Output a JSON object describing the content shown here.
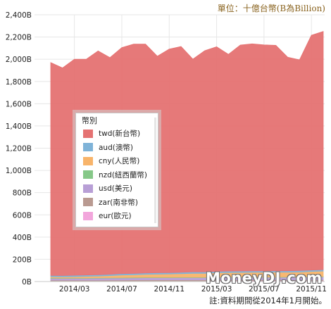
{
  "unit_label": "單位：十億台幣(B為Billion)",
  "footnote": "註:資料期間從2014年1月開始。",
  "watermark": "MoneyDJ.com",
  "colors": {
    "grid": "#e6e6e6",
    "axis_text": "#222222"
  },
  "chart_data": {
    "type": "area",
    "stacked": true,
    "y_ticks": [
      "0B",
      "200B",
      "400B",
      "600B",
      "800B",
      "1,000B",
      "1,200B",
      "1,400B",
      "1,600B",
      "1,800B",
      "2,000B",
      "2,200B",
      "2,400B"
    ],
    "ylim": [
      0,
      2400
    ],
    "x_labels": [
      "2014/03",
      "2014/07",
      "2014/11",
      "2015/03",
      "2015/07",
      "2015/11"
    ],
    "x_label_month_index": [
      2,
      6,
      10,
      14,
      18,
      22
    ],
    "months": [
      "2014/01",
      "2014/02",
      "2014/03",
      "2014/04",
      "2014/05",
      "2014/06",
      "2014/07",
      "2014/08",
      "2014/09",
      "2014/10",
      "2014/11",
      "2014/12",
      "2015/01",
      "2015/02",
      "2015/03",
      "2015/04",
      "2015/05",
      "2015/06",
      "2015/07",
      "2015/08",
      "2015/09",
      "2015/10",
      "2015/11",
      "2015/12"
    ],
    "grid": true,
    "legend_title": "幣別",
    "legend_position": "left-center",
    "series": [
      {
        "name": "eur(歐元)",
        "color": "#f2a6dc",
        "values": [
          5,
          5,
          5,
          5,
          5,
          6,
          6,
          6,
          6,
          6,
          6,
          6,
          6,
          6,
          7,
          7,
          7,
          7,
          7,
          7,
          7,
          7,
          7,
          7
        ]
      },
      {
        "name": "zar(南非幣)",
        "color": "#b99a91",
        "values": [
          8,
          8,
          8,
          8,
          8,
          8,
          8,
          9,
          9,
          9,
          9,
          9,
          9,
          9,
          9,
          9,
          9,
          9,
          9,
          9,
          9,
          9,
          10,
          10
        ]
      },
      {
        "name": "usd(美元)",
        "color": "#b89fd6",
        "values": [
          16,
          15,
          16,
          16,
          17,
          17,
          18,
          18,
          19,
          19,
          19,
          20,
          20,
          20,
          21,
          21,
          22,
          22,
          22,
          22,
          22,
          23,
          24,
          25
        ]
      },
      {
        "name": "nzd(紐西蘭幣)",
        "color": "#86c888",
        "values": [
          4,
          4,
          4,
          4,
          4,
          4,
          4,
          4,
          4,
          4,
          4,
          4,
          4,
          4,
          4,
          4,
          4,
          4,
          4,
          4,
          4,
          4,
          4,
          4
        ]
      },
      {
        "name": "cny(人民幣)",
        "color": "#f8b46a",
        "values": [
          10,
          10,
          11,
          14,
          15,
          18,
          23,
          24,
          27,
          29,
          30,
          32,
          35,
          35,
          38,
          40,
          40,
          41,
          41,
          42,
          42,
          43,
          45,
          48
        ]
      },
      {
        "name": "aud(澳幣)",
        "color": "#7fb3d8",
        "values": [
          12,
          12,
          12,
          12,
          12,
          12,
          12,
          12,
          12,
          12,
          12,
          12,
          13,
          13,
          13,
          13,
          13,
          13,
          13,
          13,
          13,
          13,
          13,
          13
        ]
      },
      {
        "name": "twd(新台幣)",
        "color": "#e57272",
        "values": [
          1915,
          1868,
          1944,
          1941,
          2014,
          1950,
          2034,
          2063,
          2059,
          1948,
          2011,
          2032,
          1914,
          1990,
          2020,
          1950,
          2033,
          2043,
          2033,
          2028,
          1921,
          1896,
          2113,
          2143
        ]
      }
    ],
    "totals": [
      1970,
      1922,
      2000,
      2000,
      2075,
      2015,
      2105,
      2136,
      2136,
      2027,
      2091,
      2115,
      2001,
      2077,
      2112,
      2044,
      2128,
      2139,
      2129,
      2125,
      2018,
      1995,
      2216,
      2250
    ]
  }
}
